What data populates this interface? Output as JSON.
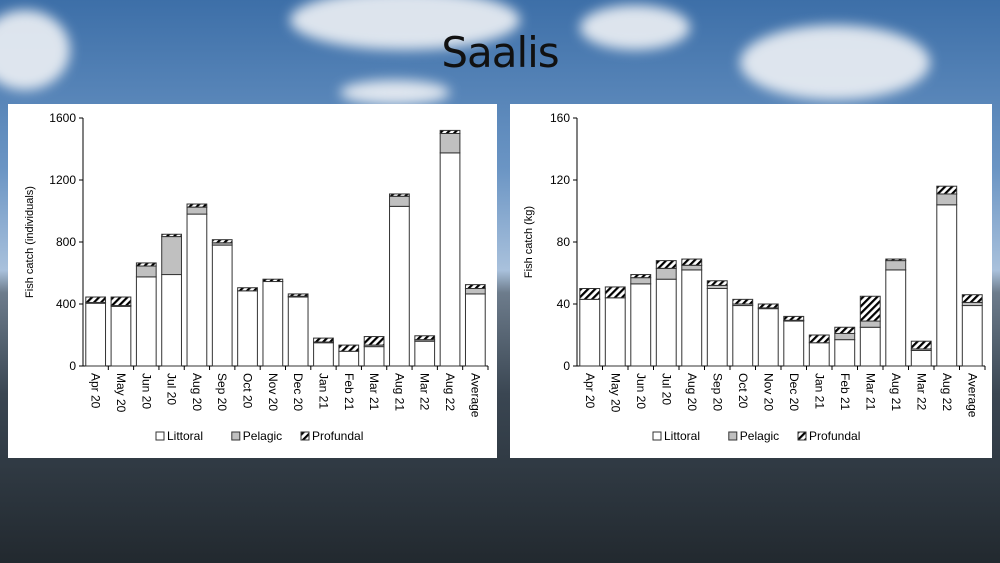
{
  "slide": {
    "title": "Saalis"
  },
  "colors": {
    "littoral": "#ffffff",
    "pelagic": "#c0c0c0",
    "profundal": "hatch"
  },
  "chart_data": [
    {
      "type": "bar",
      "stacked": true,
      "ylabel": "Fish catch (individuals)",
      "xlabel": "",
      "ylim": [
        0,
        1600
      ],
      "yticks": [
        "0",
        "400",
        "800",
        "1200",
        "1600"
      ],
      "categories": [
        "Apr 20",
        "May 20",
        "Jun 20",
        "Jul 20",
        "Aug 20",
        "Sep 20",
        "Oct 20",
        "Nov 20",
        "Dec 20",
        "Jan 21",
        "Feb 21",
        "Mar 21",
        "Aug 21",
        "Mar 22",
        "Aug 22",
        "Average"
      ],
      "series": [
        {
          "name": "Littoral",
          "values": [
            405,
            385,
            575,
            590,
            980,
            780,
            485,
            545,
            445,
            150,
            95,
            125,
            1030,
            160,
            1375,
            465
          ]
        },
        {
          "name": "Pelagic",
          "values": [
            5,
            5,
            70,
            245,
            45,
            15,
            0,
            0,
            5,
            5,
            0,
            10,
            65,
            10,
            125,
            35
          ]
        },
        {
          "name": "Profundal",
          "values": [
            35,
            55,
            20,
            15,
            20,
            20,
            20,
            15,
            15,
            25,
            40,
            55,
            15,
            25,
            20,
            25
          ]
        }
      ],
      "legend": "bottom",
      "grid": false
    },
    {
      "type": "bar",
      "stacked": true,
      "ylabel": "Fish catch (kg)",
      "xlabel": "",
      "ylim": [
        0,
        160
      ],
      "yticks": [
        "0",
        "40",
        "80",
        "120",
        "160"
      ],
      "categories": [
        "Apr 20",
        "May 20",
        "Jun 20",
        "Jul 20",
        "Aug 20",
        "Sep 20",
        "Oct 20",
        "Nov 20",
        "Dec 20",
        "Jan 21",
        "Feb 21",
        "Mar 21",
        "Aug 21",
        "Mar 22",
        "Aug 22",
        "Average"
      ],
      "series": [
        {
          "name": "Littoral",
          "values": [
            43,
            44,
            53,
            56,
            62,
            50,
            39,
            37,
            29,
            15,
            17,
            25,
            62,
            10,
            104,
            39
          ]
        },
        {
          "name": "Pelagic",
          "values": [
            0,
            0,
            4,
            7,
            3,
            2,
            1,
            0.5,
            0.5,
            0,
            4,
            4,
            6,
            1,
            7,
            2
          ]
        },
        {
          "name": "Profundal",
          "values": [
            7,
            7,
            2,
            5,
            4,
            3,
            3,
            2.5,
            2.5,
            5,
            4,
            16,
            1,
            5,
            5,
            5
          ]
        }
      ],
      "legend": "bottom",
      "grid": false
    }
  ]
}
